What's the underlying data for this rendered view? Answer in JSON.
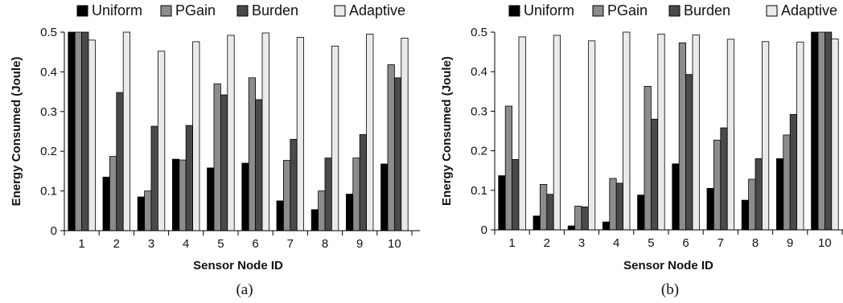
{
  "chart_data": [
    {
      "panel": "(a)",
      "type": "bar",
      "title": "",
      "xlabel": "Sensor Node ID",
      "ylabel": "Energy Consumed (Joule)",
      "ylim": [
        0,
        0.5
      ],
      "yticks": [
        "0",
        "0.1",
        "0.2",
        "0.3",
        "0.4",
        "0.5"
      ],
      "categories": [
        "1",
        "2",
        "3",
        "4",
        "5",
        "6",
        "7",
        "8",
        "9",
        "10"
      ],
      "legend_position": "top",
      "series": [
        {
          "name": "Uniform",
          "color": "#000000",
          "values": [
            0.5,
            0.135,
            0.085,
            0.18,
            0.158,
            0.17,
            0.075,
            0.053,
            0.092,
            0.168
          ]
        },
        {
          "name": "PGain",
          "color": "#8c8c8c",
          "values": [
            0.5,
            0.187,
            0.1,
            0.178,
            0.37,
            0.385,
            0.177,
            0.1,
            0.183,
            0.418
          ]
        },
        {
          "name": "Burden",
          "color": "#4a4a4a",
          "values": [
            0.5,
            0.348,
            0.263,
            0.265,
            0.342,
            0.33,
            0.23,
            0.183,
            0.242,
            0.385
          ]
        },
        {
          "name": "Adaptive",
          "color": "#eaeaea",
          "values": [
            0.48,
            0.5,
            0.452,
            0.476,
            0.492,
            0.498,
            0.487,
            0.465,
            0.495,
            0.485
          ]
        }
      ]
    },
    {
      "panel": "(b)",
      "type": "bar",
      "title": "",
      "xlabel": "Sensor Node ID",
      "ylabel": "Energy Consumed (Joule)",
      "ylim": [
        0,
        0.5
      ],
      "yticks": [
        "0",
        "0.1",
        "0.2",
        "0.3",
        "0.4",
        "0.5"
      ],
      "categories": [
        "1",
        "2",
        "3",
        "4",
        "5",
        "6",
        "7",
        "8",
        "9",
        "10"
      ],
      "legend_position": "top",
      "series": [
        {
          "name": "Uniform",
          "color": "#000000",
          "values": [
            0.137,
            0.035,
            0.01,
            0.02,
            0.088,
            0.167,
            0.105,
            0.075,
            0.18,
            0.5
          ]
        },
        {
          "name": "PGain",
          "color": "#8c8c8c",
          "values": [
            0.313,
            0.115,
            0.06,
            0.13,
            0.363,
            0.473,
            0.227,
            0.128,
            0.24,
            0.5
          ]
        },
        {
          "name": "Burden",
          "color": "#4a4a4a",
          "values": [
            0.178,
            0.09,
            0.058,
            0.118,
            0.28,
            0.393,
            0.258,
            0.18,
            0.292,
            0.5
          ]
        },
        {
          "name": "Adaptive",
          "color": "#eaeaea",
          "values": [
            0.488,
            0.492,
            0.478,
            0.5,
            0.495,
            0.493,
            0.482,
            0.476,
            0.475,
            0.483
          ]
        }
      ]
    }
  ]
}
